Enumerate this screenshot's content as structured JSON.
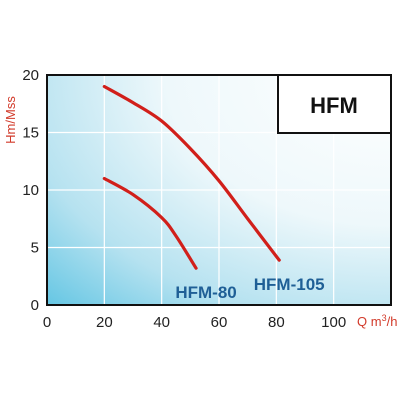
{
  "chart_data": {
    "type": "line",
    "title": "HFM",
    "ylabel": "Hm/Mss",
    "xlabel_main": "Q m",
    "xlabel_sup": "3",
    "xlabel_end": "/h",
    "xlim": [
      0,
      120
    ],
    "ylim": [
      0,
      20
    ],
    "x_ticks": [
      "0",
      "20",
      "40",
      "60",
      "80",
      "100"
    ],
    "y_ticks": [
      "0",
      "5",
      "10",
      "15",
      "20"
    ],
    "grid": true,
    "series": [
      {
        "name": "HFM-80",
        "points": [
          [
            20,
            11
          ],
          [
            30,
            9.6
          ],
          [
            40,
            7.6
          ],
          [
            45,
            6
          ],
          [
            52,
            3.2
          ]
        ]
      },
      {
        "name": "HFM-105",
        "points": [
          [
            20,
            19
          ],
          [
            30,
            17.6
          ],
          [
            40,
            16
          ],
          [
            50,
            13.6
          ],
          [
            60,
            10.8
          ],
          [
            70,
            7.5
          ],
          [
            81,
            3.9
          ]
        ]
      }
    ],
    "colors": {
      "curve": "#d11f1a",
      "series_label": "#1f5f96",
      "background_light": "#ffffff",
      "background_dark": "#5cc3e2"
    }
  }
}
